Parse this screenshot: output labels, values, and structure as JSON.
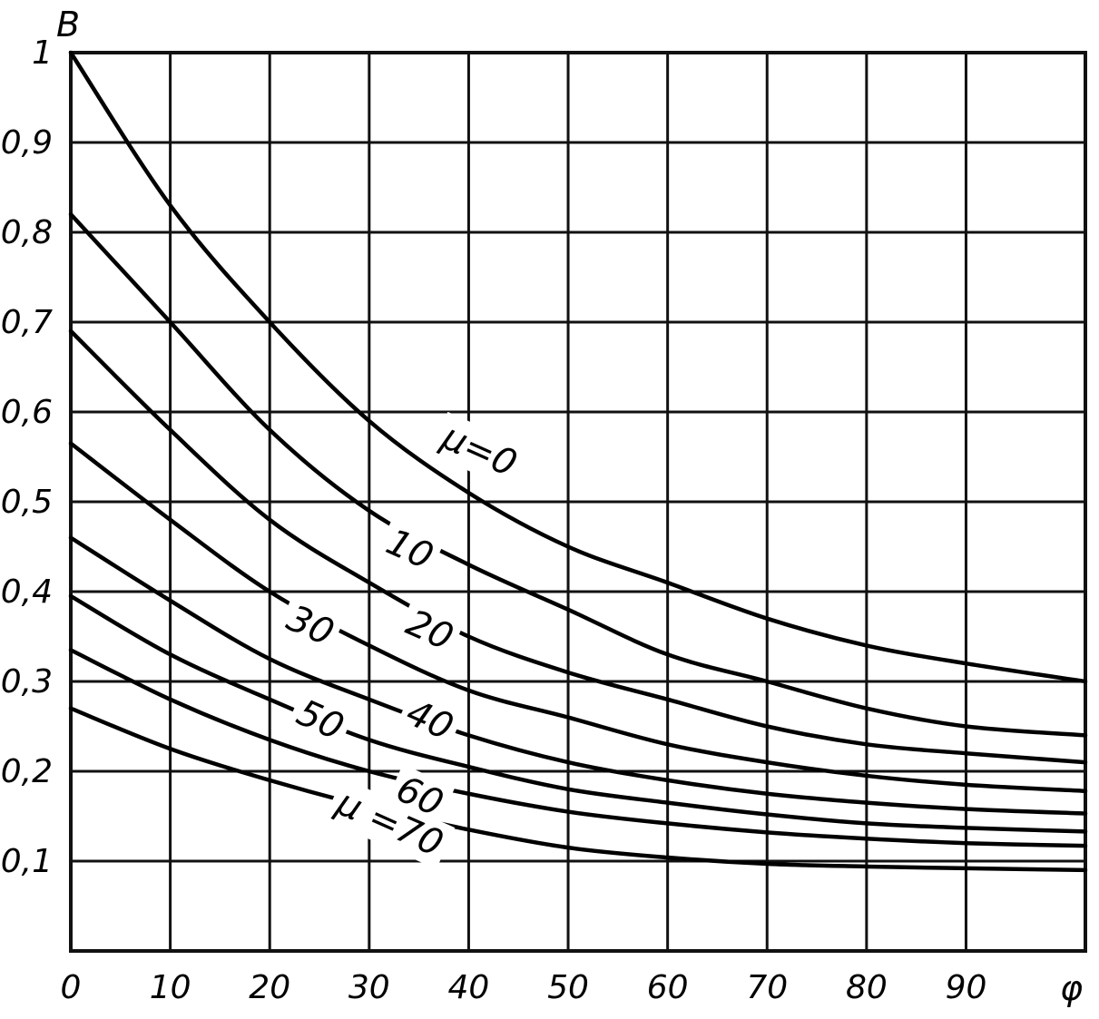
{
  "chart_data": {
    "type": "line",
    "title": "",
    "xlabel": "φ",
    "ylabel": "B",
    "xlim": [
      0,
      102
    ],
    "ylim": [
      0,
      1
    ],
    "grid": true,
    "x_ticks": [
      0,
      10,
      20,
      30,
      40,
      50,
      60,
      70,
      80,
      90
    ],
    "x_tick_labels": [
      "0",
      "10",
      "20",
      "30",
      "40",
      "50",
      "60",
      "70",
      "80",
      "90"
    ],
    "y_ticks": [
      0.1,
      0.2,
      0.3,
      0.4,
      0.5,
      0.6,
      0.7,
      0.8,
      0.9,
      1
    ],
    "y_tick_labels": [
      "0,1",
      "0,2",
      "0,3",
      "0,4",
      "0,5",
      "0,6",
      "0,7",
      "0,8",
      "0,9",
      "1"
    ],
    "x": [
      0,
      10,
      20,
      30,
      40,
      50,
      60,
      70,
      80,
      90,
      102
    ],
    "series": [
      {
        "name": "μ=0",
        "label": "μ=0",
        "values": [
          1.0,
          0.83,
          0.7,
          0.59,
          0.51,
          0.45,
          0.41,
          0.37,
          0.34,
          0.32,
          0.3
        ],
        "label_at": [
          41,
          0.555
        ]
      },
      {
        "name": "10",
        "label": "10",
        "values": [
          0.82,
          0.7,
          0.58,
          0.49,
          0.43,
          0.38,
          0.33,
          0.3,
          0.27,
          0.25,
          0.24
        ],
        "label_at": [
          34,
          0.445
        ]
      },
      {
        "name": "20",
        "label": "20",
        "values": [
          0.69,
          0.58,
          0.48,
          0.41,
          0.35,
          0.31,
          0.28,
          0.25,
          0.23,
          0.22,
          0.21
        ],
        "label_at": [
          36,
          0.355
        ]
      },
      {
        "name": "30",
        "label": "30",
        "values": [
          0.565,
          0.48,
          0.4,
          0.34,
          0.29,
          0.26,
          0.23,
          0.21,
          0.195,
          0.185,
          0.178
        ],
        "label_at": [
          24,
          0.36
        ]
      },
      {
        "name": "40",
        "label": "40",
        "values": [
          0.46,
          0.39,
          0.325,
          0.28,
          0.24,
          0.21,
          0.19,
          0.175,
          0.165,
          0.158,
          0.153
        ],
        "label_at": [
          36,
          0.255
        ]
      },
      {
        "name": "50",
        "label": "50",
        "values": [
          0.395,
          0.33,
          0.28,
          0.235,
          0.205,
          0.18,
          0.165,
          0.152,
          0.142,
          0.137,
          0.133
        ],
        "label_at": [
          25,
          0.255
        ]
      },
      {
        "name": "60",
        "label": "60",
        "values": [
          0.335,
          0.28,
          0.235,
          0.2,
          0.175,
          0.155,
          0.142,
          0.132,
          0.125,
          0.12,
          0.117
        ],
        "label_at": [
          35,
          0.17
        ]
      },
      {
        "name": "μ=70",
        "label": "μ =70",
        "values": [
          0.27,
          0.225,
          0.19,
          0.16,
          0.135,
          0.115,
          0.104,
          0.097,
          0.094,
          0.092,
          0.09
        ],
        "label_at": [
          32,
          0.14
        ]
      }
    ]
  }
}
